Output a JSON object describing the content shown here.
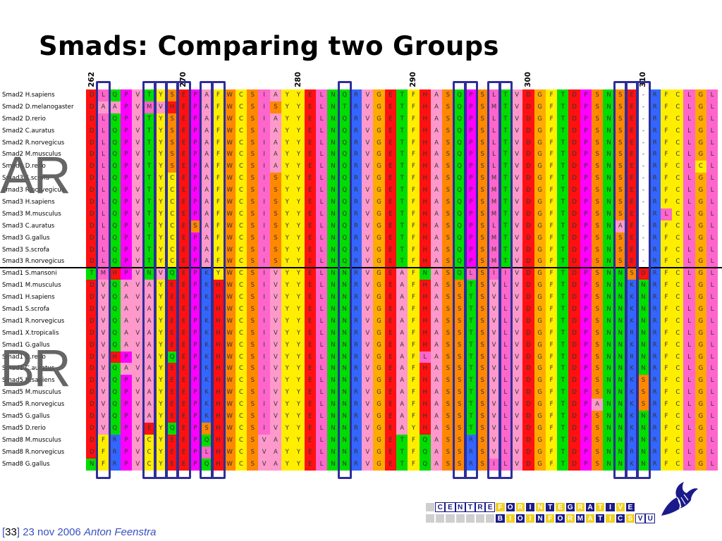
{
  "slide": {
    "title": "Smads: Comparing two Groups",
    "group_labels": {
      "top": "AR",
      "bottom": "BR"
    },
    "footer": {
      "page": "33",
      "date": "23 nov 2006",
      "author": "Anton Feenstra"
    },
    "logo": {
      "row1": "CENTREFORINTEGRATIVE",
      "row2": "BIOINFORMATICSVU"
    }
  },
  "alignment": {
    "position_ticks": [
      "262",
      "270",
      "280",
      "290",
      "300",
      "310"
    ],
    "colors": {
      "D": "#ff1111",
      "E": "#ff1111",
      "L": "#ff66cc",
      "Q": "#00dd00",
      "P": "#ff00ff",
      "Y": "#ffee00",
      "T": "#00dd00",
      "S": "#ff8800",
      "A": "#ff99cc",
      "F": "#ffee00",
      "W": "#ff8800",
      "C": "#ffee00",
      "I": "#ff66cc",
      "N": "#00dd00",
      "R": "#3366ff",
      "V": "#ff99cc",
      "G": "#ffaa00",
      "H": "#ff1111",
      "M": "#ff66cc",
      "K": "#3366ff",
      "-": "#ffffff"
    },
    "sequences": [
      {
        "name": "Smad2 H.sapiens",
        "seq": "DLQPVTYSEPAFWCSIAYYELNQRVGETFHASQPSLTVDGFTDPSNSE-RFCLGL"
      },
      {
        "name": "Smad2 D.melanogaster",
        "seq": "DAAPVMVHEPAFWCSISYYELNTRVGETFHASQPSMTVDGFTDPSNSE-RFCLGL"
      },
      {
        "name": "Smad2 D.rerio",
        "seq": "DLQPVTYSEPAFWCSIAYYELNQRVGETFHASQPSLTVDGFTDPSNSE-RFCLGL"
      },
      {
        "name": "Smad2 C.auratus",
        "seq": "DLQPVTYSEPAFWCSIAYYELNQRVGETFHASQPSLTVDGFTDPSNSE-RFCLGL"
      },
      {
        "name": "Smad2 R.norvegicus",
        "seq": "DLQPVTYSEPAFWCSIAYYELNQRVGETFHASQPSLTVDGFTDPSNSE-RFCLGL"
      },
      {
        "name": "Smad2 M.musculus",
        "seq": "DLQPVTYSEPAFWCSIAYYELNQRVGETFHASQPSLTVDGFTDPSNSE-RFCLGL"
      },
      {
        "name": "Smad3 D.rerio",
        "seq": "DLQPVTYSEPAFWCSIAYYELNQRVGETFHASQPSLTVDGFTDPSNSE-RFCLCL"
      },
      {
        "name": "Smad3 S.scrofa",
        "seq": "DLQPVTYCEPAFWCSISYYELNQRVGETFHASQPSMTVDGFTDPSNSE-RFCLGL"
      },
      {
        "name": "Smad3 R.norvegicus",
        "seq": "DLQPVTYCEPAFWCSISYYELNQRVGETFHASQPSMTVDGFTDPSNSE-RFCLGL"
      },
      {
        "name": "Smad3 H.sapiens",
        "seq": "DLQPVTYCEPAFWCSISYYELNQRVGETFHASQPSMTVDGFTDPSNSE-RFCLGL"
      },
      {
        "name": "Smad3 M.musculus",
        "seq": "DLQPVTYCEPAFWCSISYYELNQRVGETFHASQPSMTVDGFTDPSNSE-RLCLGL"
      },
      {
        "name": "Smad3 C.auratus",
        "seq": "DLQPVTYCESAFWCSISYYELNQRVGETFHASQPSLTVDGFTDPSNAE-RFCLGL"
      },
      {
        "name": "Smad3 G.gallus",
        "seq": "DLQPVTYCEPAFWCSISYYELNQRVGETFHASQPSMTVDGFTDPSNSE-RFCLGL"
      },
      {
        "name": "Smad3 S.scrofa",
        "seq": "DLQPVTYCEPAFWCSISYYELNQRVGETFHASQPSMTVDGFTDPSNSE-RFCLGL"
      },
      {
        "name": "Smad3 R.norvegicus",
        "seq": "DLQPVTYCEPAFWCSISYYELNQRVGETFHASQPSMTVDGFTDPSNSE-RFCLGL"
      },
      {
        "name": "Smad1 S.mansoni",
        "seq": "TMHPVNVQEPKYWCSIVYYELNNRVGEAFNASQLSIIVDGFTDPSNNSDRFCLGL"
      },
      {
        "name": "Smad1 M.musculus",
        "seq": "DVQAVAYEEPKHWCSIVYYELNNRVGEAFHASSTSVLVDGFTDPSNNKNRFCLGL"
      },
      {
        "name": "Smad1 H.sapiens",
        "seq": "DVQAVAYEEPKHWCSIVYYELNNRVGEAFHASSTSVLVDGFTDPSNNKNRFCLGL"
      },
      {
        "name": "Smad1 S.scrofa",
        "seq": "DVQAVAYEEPKHWCSIVYYELNNRVGEAFHASSTSVLVDGFTDPSNNKNRFCLGL"
      },
      {
        "name": "Smad1 R.norvegicus",
        "seq": "DVQAVAYEEPKHWCSIVYYELNNRVGEAFHASSTSVLVDGFTDPSNNKNRFCLGL"
      },
      {
        "name": "Smad1 X.tropicalis",
        "seq": "DVQAVAYEEPKHWCSIVYYELNNRVGEAFHASSTSVLVDGFTDPSNNRNRFCLGL"
      },
      {
        "name": "Smad1 G.gallus",
        "seq": "DVQAVAYEEPKHWCSIVYYELNNRVGEAFHASSTSVLVDGFTDPSNNKNRFCLGL"
      },
      {
        "name": "Smad1 D.rerio",
        "seq": "DVHPVAYQEPKHWCSIVYYELNNRVGEAFLASSTSVLVDGFTDPSNNRNRFCLGL"
      },
      {
        "name": "Smad1 C.auratus",
        "seq": "DVQAVAYEEPKHWCSIVYYELNNRVGEAFHASSTSVLVDGFTDPSNNKNRFCLGL"
      },
      {
        "name": "Smad5 H.sapiens",
        "seq": "DVQPVAYEEPKHWCSIVYYELNNRVGEAFHASSTSVLVDGFTDPSNNKSRFCLGL"
      },
      {
        "name": "Smad5 M.musculus",
        "seq": "DVQPVAYEEPKHWCSIVYYELNNRVGEAFHASSTSVLVDGFTDPSNNKSRFCLGL"
      },
      {
        "name": "Smad5 R.norvegicus",
        "seq": "DVQPVAYEEPKHWCSIVYYELNNRVGEAFHASSTSVLVDGFTDPANNKSRFCLGL"
      },
      {
        "name": "Smad5 G.gallus",
        "seq": "DVQPVAYEEPKHWCSIVYYELNNRVGEAFHASSTSVLVDGFTDPSNNKNRFCLGL"
      },
      {
        "name": "Smad5 D.rerio",
        "seq": "DVQPVEYQEPSHWCSIVYYELNNRVGEAYHASSTSVLVDGFTDPSNNKNRFCLGL"
      },
      {
        "name": "Smad8 M.musculus",
        "seq": "DFRPVCYEEPQHWCSVAYYELNNRVGETFQASSRSVLVDGFTDPSNNRNRFCLGL"
      },
      {
        "name": "Smad8 R.norvegicus",
        "seq": "DFRPVCYEEPLHWCSVAYYELNNRVGETFQASSRSVLVDGFTDPSNNRNRFCLGL"
      },
      {
        "name": "Smad8 G.gallus",
        "seq": "NFRPVCYEEPQHWCSVAYYELNNRVGETFQASSRSILVDGFTDPSNNKNRFCLGL"
      }
    ],
    "highlighted_columns": [
      1,
      5,
      6,
      7,
      8,
      10,
      11,
      22,
      32,
      33,
      35,
      36,
      46,
      47,
      48
    ]
  }
}
